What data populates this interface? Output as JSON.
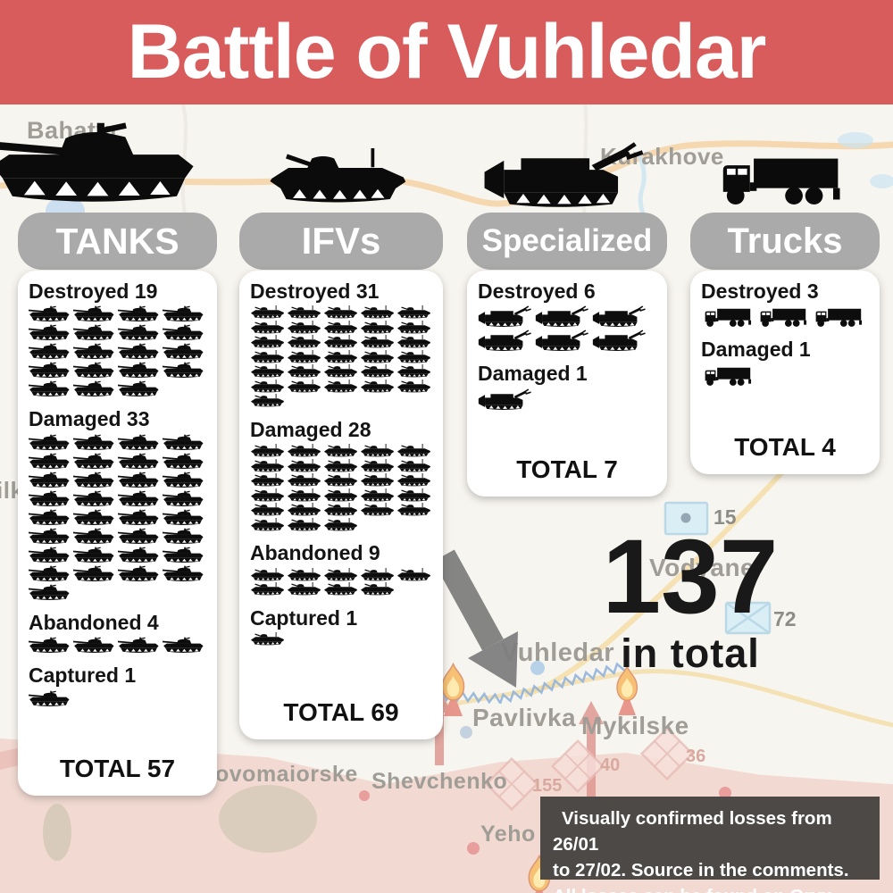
{
  "header": {
    "title": "Battle of Vuhledar"
  },
  "colors": {
    "accent": "#d95c5c",
    "pill_gray": "#a7a7a7",
    "panel": "#ffffff",
    "footer_bg": "#4c4947",
    "ink": "#141414"
  },
  "columns": [
    {
      "id": "tanks",
      "label": "TANKS",
      "icon": "tank-icon",
      "symbol": "sym-tank",
      "sections": [
        {
          "label": "Destroyed",
          "count": 19
        },
        {
          "label": "Damaged",
          "count": 33
        },
        {
          "label": "Abandoned",
          "count": 4
        },
        {
          "label": "Captured",
          "count": 1
        }
      ],
      "total_label": "TOTAL 57"
    },
    {
      "id": "ifvs",
      "label": "IFVs",
      "icon": "ifv-icon",
      "symbol": "sym-ifv",
      "sections": [
        {
          "label": "Destroyed",
          "count": 31
        },
        {
          "label": "Damaged",
          "count": 28
        },
        {
          "label": "Abandoned",
          "count": 9
        },
        {
          "label": "Captured",
          "count": 1
        }
      ],
      "total_label": "TOTAL 69"
    },
    {
      "id": "specialized",
      "label": "Specialized",
      "icon": "specialized-vehicle-icon",
      "symbol": "sym-spec",
      "sections": [
        {
          "label": "Destroyed",
          "count": 6
        },
        {
          "label": "Damaged",
          "count": 1
        }
      ],
      "total_label": "TOTAL 7"
    },
    {
      "id": "trucks",
      "label": "Trucks",
      "icon": "truck-icon",
      "symbol": "sym-truck",
      "sections": [
        {
          "label": "Destroyed",
          "count": 3
        },
        {
          "label": "Damaged",
          "count": 1
        }
      ],
      "total_label": "TOTAL 4"
    }
  ],
  "grand_total": {
    "number": "137",
    "caption": "in total"
  },
  "footer": {
    "lines": [
      "Visually confirmed losses from 26/01",
      "to 27/02. Source in the comments.",
      "All losses can be found on Oryx."
    ]
  },
  "map": {
    "labels": [
      "Bahatyr",
      "Kurakhove",
      "Vodyane",
      "Vuhledar",
      "Pavlivka",
      "Mykilske",
      "Shevchenko",
      "ovomaiorske",
      "Yeho",
      "ilk"
    ],
    "badges": [
      {
        "text": "15"
      },
      {
        "text": "72"
      },
      {
        "text": "40"
      },
      {
        "text": "155"
      },
      {
        "text": "36"
      }
    ]
  },
  "chart_data": {
    "type": "bar",
    "title": "Battle of Vuhledar",
    "categories": [
      "TANKS",
      "IFVs",
      "Specialized",
      "Trucks"
    ],
    "series": [
      {
        "name": "Destroyed",
        "values": [
          19,
          31,
          6,
          3
        ]
      },
      {
        "name": "Damaged",
        "values": [
          33,
          28,
          1,
          1
        ]
      },
      {
        "name": "Abandoned",
        "values": [
          4,
          9,
          0,
          0
        ]
      },
      {
        "name": "Captured",
        "values": [
          1,
          1,
          0,
          0
        ]
      }
    ],
    "totals": [
      57,
      69,
      7,
      4
    ],
    "grand_total": 137,
    "note": "Visually confirmed losses from 26/01 to 27/02. Source in the comments. All losses can be found on Oryx."
  }
}
